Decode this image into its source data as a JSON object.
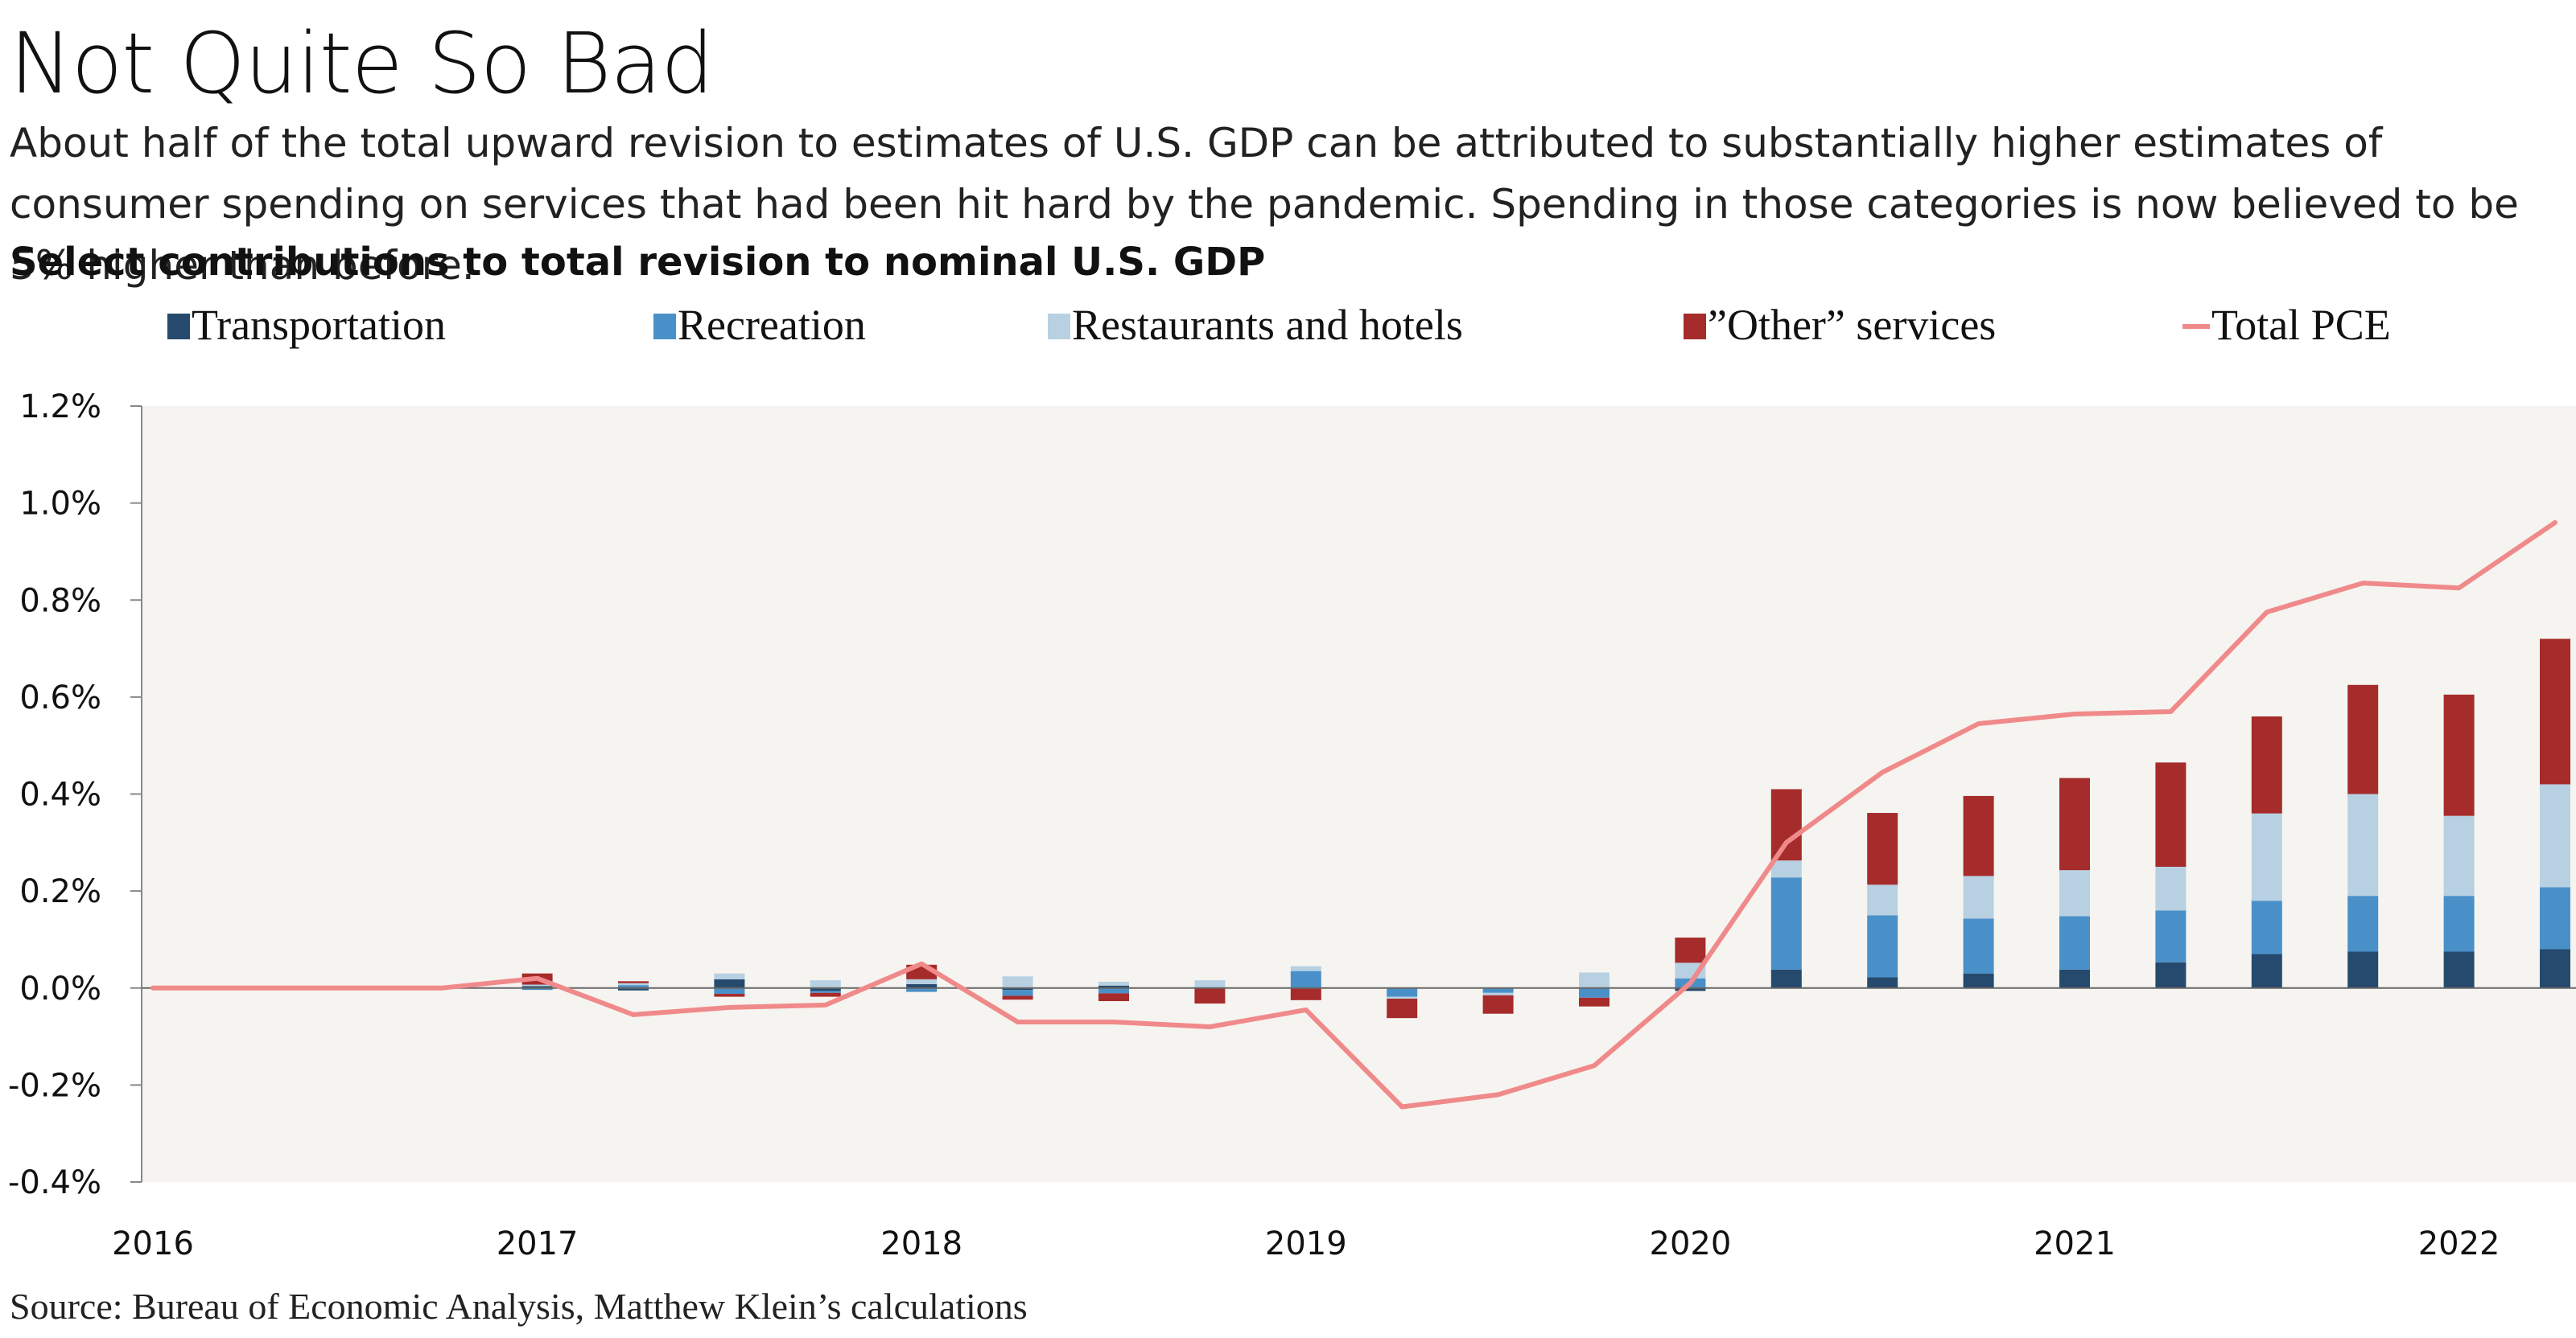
{
  "title": "Not Quite So Bad",
  "subtitle": "About half of the total upward revision to estimates of U.S. GDP can be attributed to substantially higher estimates of consumer spending on services that had been hit hard by the pandemic. Spending in those categories is now believed to be 5% higher than before.",
  "source": "Source: Bureau of Economic Analysis, Matthew Klein’s calculations",
  "chart_data": {
    "type": "bar",
    "title": "Select contributions to total revision to nominal U.S. GDP",
    "xlabel": "",
    "ylabel": "",
    "ylim": [
      -0.4,
      1.2
    ],
    "y_ticks": [
      "1.2%",
      "1.0%",
      "0.8%",
      "0.6%",
      "0.4%",
      "0.2%",
      "0.0%",
      "-0.2%",
      "-0.4%"
    ],
    "y_tick_values": [
      1.2,
      1.0,
      0.8,
      0.6,
      0.4,
      0.2,
      0.0,
      -0.2,
      -0.4
    ],
    "x_ticks": [
      "2016",
      "2017",
      "2018",
      "2019",
      "2020",
      "2021",
      "2022"
    ],
    "x_tick_quarters": [
      0,
      4,
      8,
      12,
      16,
      20,
      24
    ],
    "quarters": [
      "2016Q1",
      "2016Q2",
      "2016Q3",
      "2016Q4",
      "2017Q1",
      "2017Q2",
      "2017Q3",
      "2017Q4",
      "2018Q1",
      "2018Q2",
      "2018Q3",
      "2018Q4",
      "2019Q1",
      "2019Q2",
      "2019Q3",
      "2019Q4",
      "2020Q1",
      "2020Q2",
      "2020Q3",
      "2020Q4",
      "2021Q1",
      "2021Q2",
      "2021Q3",
      "2021Q4",
      "2022Q1",
      "2022Q2"
    ],
    "grid": false,
    "legend_position": "top",
    "series": [
      {
        "name": "Transportation",
        "kind": "bar",
        "color": "#254A6D",
        "values": [
          0,
          0,
          0,
          0,
          0.004,
          -0.005,
          0.018,
          -0.006,
          0.008,
          -0.004,
          0.005,
          0,
          0,
          0,
          0,
          0,
          -0.006,
          0.038,
          0.022,
          0.03,
          0.038,
          0.053,
          0.07,
          0.075,
          0.075,
          0.08
        ]
      },
      {
        "name": "Recreation",
        "kind": "bar",
        "color": "#4A90C8",
        "values": [
          0,
          0,
          0,
          0,
          -0.004,
          0.006,
          -0.012,
          -0.004,
          -0.008,
          -0.012,
          -0.011,
          0,
          0.035,
          -0.018,
          -0.01,
          -0.02,
          0.02,
          0.19,
          0.128,
          0.113,
          0.11,
          0.107,
          0.11,
          0.115,
          0.115,
          0.128
        ]
      },
      {
        "name": "Restaurants and hotels",
        "kind": "bar",
        "color": "#B7D1E3",
        "values": [
          0,
          0,
          0,
          0,
          0.003,
          0.004,
          0.012,
          0.016,
          0.01,
          0.024,
          0.008,
          0.016,
          0.01,
          -0.004,
          -0.005,
          0.032,
          0.032,
          0.035,
          0.063,
          0.088,
          0.095,
          0.09,
          0.18,
          0.21,
          0.165,
          0.212
        ]
      },
      {
        "name": "”Other” services",
        "kind": "bar",
        "color": "#A62B2B",
        "values": [
          0,
          0,
          0,
          0,
          0.023,
          0.004,
          -0.006,
          -0.008,
          0.03,
          -0.008,
          -0.016,
          -0.032,
          -0.025,
          -0.04,
          -0.038,
          -0.018,
          0.052,
          0.147,
          0.148,
          0.165,
          0.19,
          0.215,
          0.2,
          0.225,
          0.25,
          0.3
        ]
      },
      {
        "name": "Total PCE",
        "kind": "line",
        "color": "#F08A8A",
        "values": [
          0,
          0,
          0,
          0,
          0.02,
          -0.055,
          -0.04,
          -0.035,
          0.05,
          -0.07,
          -0.07,
          -0.08,
          -0.045,
          -0.245,
          -0.22,
          -0.16,
          0.01,
          0.3,
          0.445,
          0.545,
          0.565,
          0.57,
          0.775,
          0.835,
          0.825,
          0.96
        ]
      }
    ]
  }
}
